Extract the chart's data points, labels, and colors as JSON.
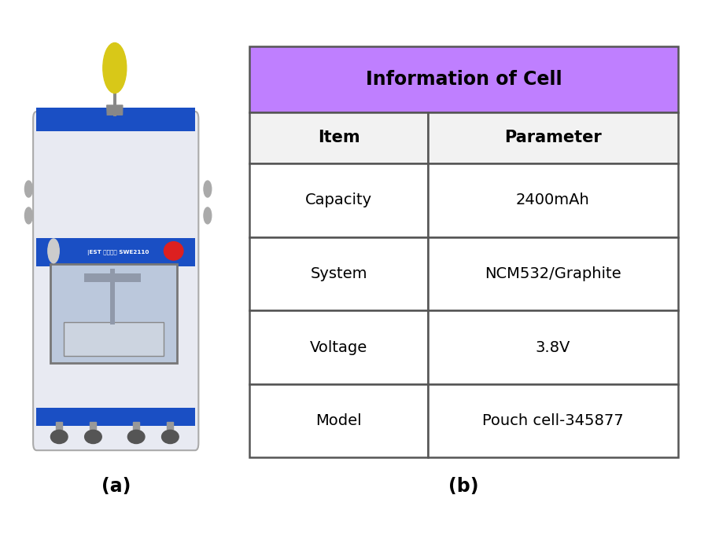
{
  "title": "Information of Cell",
  "title_bg_color": "#bf7fff",
  "header_row": [
    "Item",
    "Parameter"
  ],
  "rows": [
    [
      "Capacity",
      "2400mAh"
    ],
    [
      "System",
      "NCM532/Graphite"
    ],
    [
      "Voltage",
      "3.8V"
    ],
    [
      "Model",
      "Pouch cell-345877"
    ]
  ],
  "table_border_color": "#555555",
  "label_a": "(a)",
  "label_b": "(b)",
  "bg_color": "#ffffff"
}
